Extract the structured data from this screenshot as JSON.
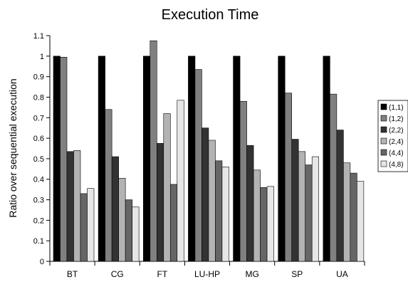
{
  "chart_data": {
    "type": "bar",
    "title": "Execution Time",
    "xlabel": "",
    "ylabel": "Ratio over sequential execution",
    "ylim": [
      0,
      1.1
    ],
    "yticks": [
      0,
      0.1,
      0.2,
      0.3,
      0.4,
      0.5,
      0.6,
      0.7,
      0.8,
      0.9,
      1,
      1.1
    ],
    "ytick_labels": [
      "0",
      "0.1",
      "0.2",
      "0.3",
      "0.4",
      "0.5",
      "0.6",
      "0.7",
      "0.8",
      "0.9",
      "1",
      "1.1"
    ],
    "categories": [
      "BT",
      "CG",
      "FT",
      "LU-HP",
      "MG",
      "SP",
      "UA"
    ],
    "grid": false,
    "legend_position": "right",
    "series": [
      {
        "name": "(1,1)",
        "color": "#000000",
        "values": [
          1.0,
          1.0,
          1.0,
          1.0,
          1.0,
          1.0,
          1.0
        ]
      },
      {
        "name": "(1,2)",
        "color": "#808080",
        "values": [
          0.995,
          0.74,
          1.075,
          0.935,
          0.78,
          0.82,
          0.815
        ]
      },
      {
        "name": "(2,2)",
        "color": "#333333",
        "values": [
          0.535,
          0.51,
          0.575,
          0.65,
          0.565,
          0.595,
          0.64
        ]
      },
      {
        "name": "(2,4)",
        "color": "#b3b3b3",
        "values": [
          0.54,
          0.405,
          0.72,
          0.59,
          0.445,
          0.535,
          0.48
        ]
      },
      {
        "name": "(4,4)",
        "color": "#666666",
        "values": [
          0.33,
          0.3,
          0.375,
          0.49,
          0.36,
          0.47,
          0.43
        ]
      },
      {
        "name": "(4,8)",
        "color": "#e6e6e6",
        "values": [
          0.355,
          0.265,
          0.785,
          0.46,
          0.365,
          0.51,
          0.39
        ]
      }
    ]
  }
}
